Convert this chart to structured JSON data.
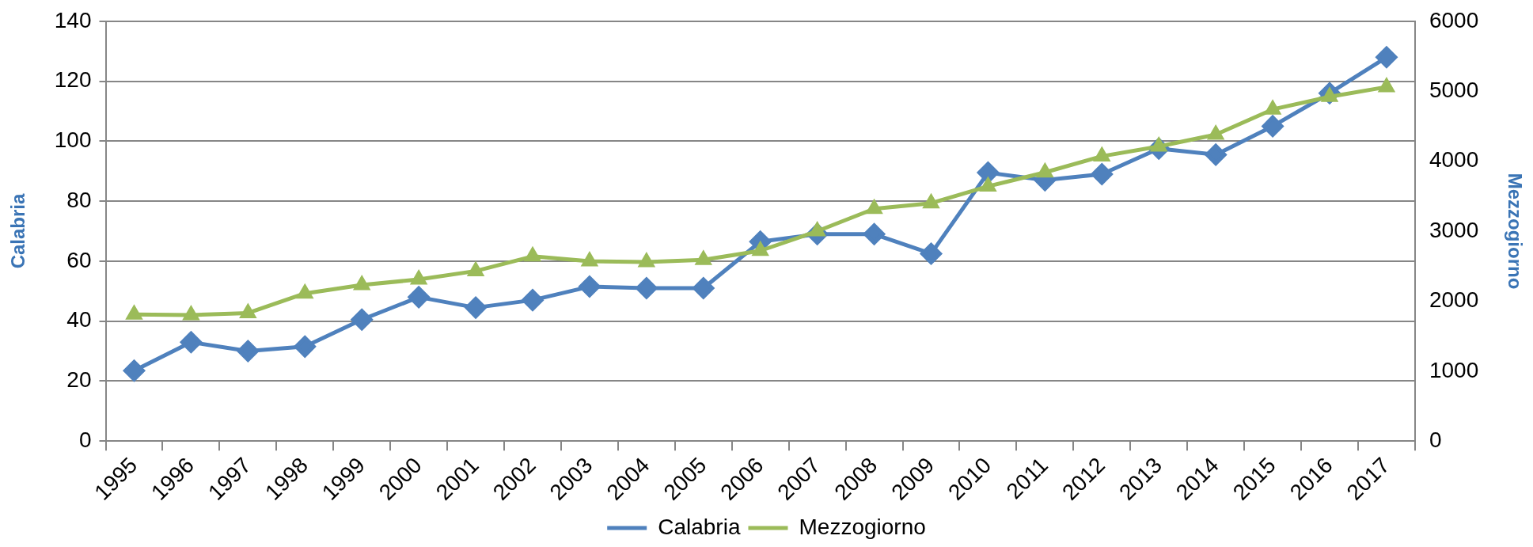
{
  "chart_data": {
    "type": "line",
    "ylabel": "Calabria",
    "y2label": "Mezzogiorno",
    "categories": [
      "1995",
      "1996",
      "1997",
      "1998",
      "1999",
      "2000",
      "2001",
      "2002",
      "2003",
      "2004",
      "2005",
      "2006",
      "2007",
      "2008",
      "2009",
      "2010",
      "2011",
      "2012",
      "2013",
      "2014",
      "2015",
      "2016",
      "2017"
    ],
    "series": [
      {
        "name": "Calabria",
        "color": "#4f81bd",
        "marker": "diamond",
        "values": [
          23.5,
          33,
          30,
          31.5,
          40.5,
          48,
          44.5,
          47,
          51.5,
          51,
          51,
          66.5,
          69,
          69,
          62.5,
          89.5,
          87,
          89,
          97.5,
          95.5,
          105,
          116,
          128
        ]
      },
      {
        "name": "Mezzogiorno",
        "color": "#9bbb59",
        "marker": "triangle",
        "axis": "y2",
        "values": [
          1810,
          1800,
          1830,
          2110,
          2230,
          2310,
          2430,
          2640,
          2570,
          2560,
          2590,
          2720,
          3000,
          3320,
          3400,
          3640,
          3840,
          4070,
          4210,
          4380,
          4740,
          4920,
          5060
        ]
      }
    ],
    "ylim": [
      0,
      140
    ],
    "yticks": [
      0,
      20,
      40,
      60,
      80,
      100,
      120,
      140
    ],
    "y2lim": [
      0,
      6000
    ],
    "y2ticks": [
      0,
      1000,
      2000,
      3000,
      4000,
      5000,
      6000
    ],
    "grid": "y",
    "legend": "bottom"
  }
}
